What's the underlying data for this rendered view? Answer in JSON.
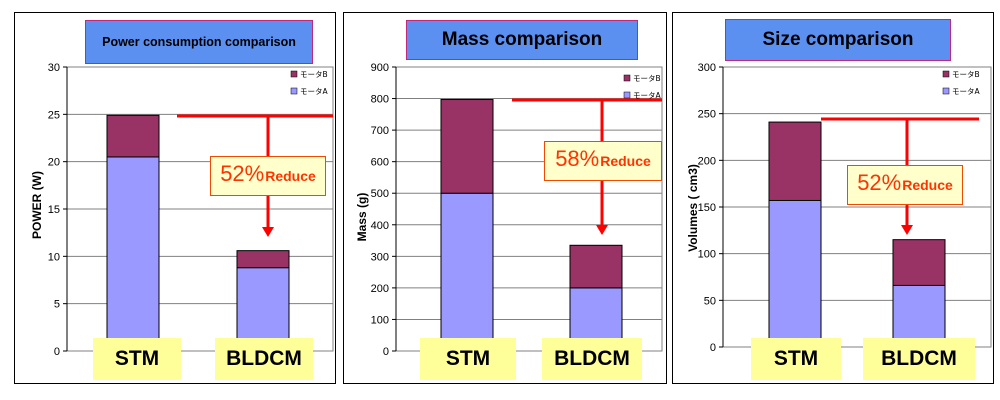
{
  "colors": {
    "motorA": "#9999ff",
    "motorB": "#993366",
    "arrow": "#ff0000",
    "title_bg": "#5b8ff0"
  },
  "chart_data": [
    {
      "type": "bar",
      "title": "Power consumption comparison",
      "ylabel": "POWER (W)",
      "categories": [
        "STM",
        "BLDCM"
      ],
      "ylim": [
        0,
        30
      ],
      "yticks": [
        "0",
        "5",
        "10",
        "15",
        "20",
        "25",
        "30"
      ],
      "series": [
        {
          "name": "モータA",
          "values": [
            20.5,
            8.8
          ]
        },
        {
          "name": "モータB",
          "values": [
            4.4,
            1.8
          ]
        }
      ],
      "annotation": {
        "percent": "52%",
        "word": "Reduce"
      },
      "legend_position": "top-right",
      "grid": true
    },
    {
      "type": "bar",
      "title": "Mass comparison",
      "ylabel": "Mass (g)",
      "categories": [
        "STM",
        "BLDCM"
      ],
      "ylim": [
        0,
        900
      ],
      "yticks": [
        "0",
        "100",
        "200",
        "300",
        "400",
        "500",
        "600",
        "700",
        "800",
        "900"
      ],
      "series": [
        {
          "name": "モータA",
          "values": [
            500,
            200
          ]
        },
        {
          "name": "モータB",
          "values": [
            297,
            135
          ]
        }
      ],
      "annotation": {
        "percent": "58%",
        "word": "Reduce"
      },
      "legend_position": "top-right",
      "grid": true
    },
    {
      "type": "bar",
      "title": "Size comparison",
      "ylabel": "Volumes ( cm3)",
      "categories": [
        "STM",
        "BLDCM"
      ],
      "ylim": [
        0,
        300
      ],
      "yticks": [
        "0",
        "50",
        "100",
        "150",
        "200",
        "250",
        "300"
      ],
      "series": [
        {
          "name": "モータA",
          "values": [
            157,
            66
          ]
        },
        {
          "name": "モータB",
          "values": [
            84,
            49
          ]
        }
      ],
      "annotation": {
        "percent": "52%",
        "word": "Reduce"
      },
      "legend_position": "top-right",
      "grid": true
    }
  ]
}
